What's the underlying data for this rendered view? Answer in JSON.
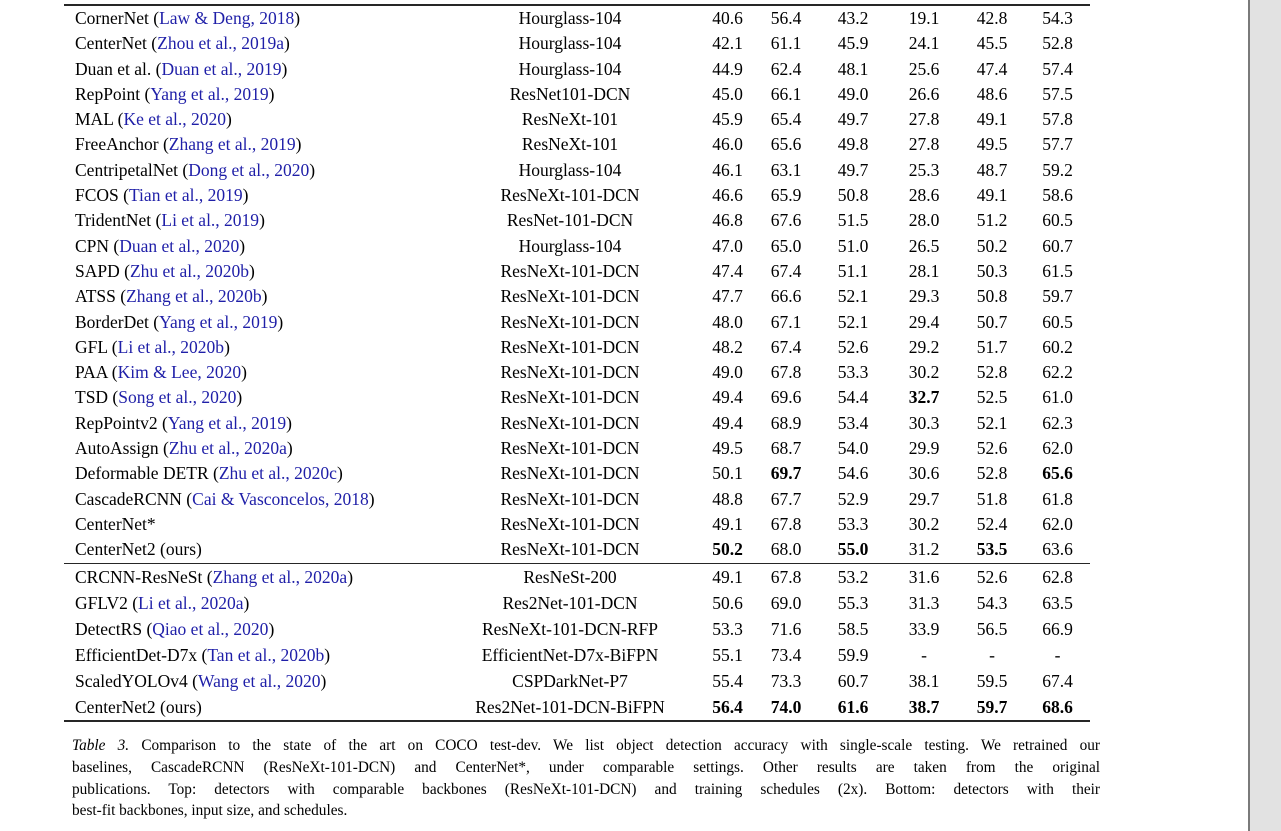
{
  "colors": {
    "citation_blue": "#1f1fa8",
    "rule_color": "#262626",
    "scrollbar_track": "#e2e2e2",
    "scrollbar_border": "#7a7a7a",
    "text": "#000000",
    "background": "#ffffff"
  },
  "table": {
    "sections": [
      {
        "name": "comparable-backbones",
        "rows": [
          {
            "method_pre": "CornerNet (",
            "cite": "Law & Deng, 2018",
            "method_post": ")",
            "backbone": "Hourglass-104",
            "values": [
              "40.6",
              "56.4",
              "43.2",
              "19.1",
              "42.8",
              "54.3"
            ],
            "bold": [
              false,
              false,
              false,
              false,
              false,
              false
            ]
          },
          {
            "method_pre": "CenterNet (",
            "cite": "Zhou et al., 2019a",
            "method_post": ")",
            "backbone": "Hourglass-104",
            "values": [
              "42.1",
              "61.1",
              "45.9",
              "24.1",
              "45.5",
              "52.8"
            ],
            "bold": [
              false,
              false,
              false,
              false,
              false,
              false
            ]
          },
          {
            "method_pre": "Duan et al. (",
            "cite": "Duan et al., 2019",
            "method_post": ")",
            "backbone": "Hourglass-104",
            "values": [
              "44.9",
              "62.4",
              "48.1",
              "25.6",
              "47.4",
              "57.4"
            ],
            "bold": [
              false,
              false,
              false,
              false,
              false,
              false
            ]
          },
          {
            "method_pre": "RepPoint (",
            "cite": "Yang et al., 2019",
            "method_post": ")",
            "backbone": "ResNet101-DCN",
            "values": [
              "45.0",
              "66.1",
              "49.0",
              "26.6",
              "48.6",
              "57.5"
            ],
            "bold": [
              false,
              false,
              false,
              false,
              false,
              false
            ]
          },
          {
            "method_pre": "MAL (",
            "cite": "Ke et al., 2020",
            "method_post": ")",
            "backbone": "ResNeXt-101",
            "values": [
              "45.9",
              "65.4",
              "49.7",
              "27.8",
              "49.1",
              "57.8"
            ],
            "bold": [
              false,
              false,
              false,
              false,
              false,
              false
            ]
          },
          {
            "method_pre": "FreeAnchor (",
            "cite": "Zhang et al., 2019",
            "method_post": ")",
            "backbone": "ResNeXt-101",
            "values": [
              "46.0",
              "65.6",
              "49.8",
              "27.8",
              "49.5",
              "57.7"
            ],
            "bold": [
              false,
              false,
              false,
              false,
              false,
              false
            ]
          },
          {
            "method_pre": "CentripetalNet (",
            "cite": "Dong et al., 2020",
            "method_post": ")",
            "backbone": "Hourglass-104",
            "values": [
              "46.1",
              "63.1",
              "49.7",
              "25.3",
              "48.7",
              "59.2"
            ],
            "bold": [
              false,
              false,
              false,
              false,
              false,
              false
            ]
          },
          {
            "method_pre": "FCOS (",
            "cite": "Tian et al., 2019",
            "method_post": ")",
            "backbone": "ResNeXt-101-DCN",
            "values": [
              "46.6",
              "65.9",
              "50.8",
              "28.6",
              "49.1",
              "58.6"
            ],
            "bold": [
              false,
              false,
              false,
              false,
              false,
              false
            ]
          },
          {
            "method_pre": "TridentNet (",
            "cite": "Li et al., 2019",
            "method_post": ")",
            "backbone": "ResNet-101-DCN",
            "values": [
              "46.8",
              "67.6",
              "51.5",
              "28.0",
              "51.2",
              "60.5"
            ],
            "bold": [
              false,
              false,
              false,
              false,
              false,
              false
            ]
          },
          {
            "method_pre": "CPN (",
            "cite": "Duan et al., 2020",
            "method_post": ")",
            "backbone": "Hourglass-104",
            "values": [
              "47.0",
              "65.0",
              "51.0",
              "26.5",
              "50.2",
              "60.7"
            ],
            "bold": [
              false,
              false,
              false,
              false,
              false,
              false
            ]
          },
          {
            "method_pre": "SAPD (",
            "cite": "Zhu et al., 2020b",
            "method_post": ")",
            "backbone": "ResNeXt-101-DCN",
            "values": [
              "47.4",
              "67.4",
              "51.1",
              "28.1",
              "50.3",
              "61.5"
            ],
            "bold": [
              false,
              false,
              false,
              false,
              false,
              false
            ]
          },
          {
            "method_pre": "ATSS (",
            "cite": "Zhang et al., 2020b",
            "method_post": ")",
            "backbone": "ResNeXt-101-DCN",
            "values": [
              "47.7",
              "66.6",
              "52.1",
              "29.3",
              "50.8",
              "59.7"
            ],
            "bold": [
              false,
              false,
              false,
              false,
              false,
              false
            ]
          },
          {
            "method_pre": "BorderDet (",
            "cite": "Yang et al., 2019",
            "method_post": ")",
            "backbone": "ResNeXt-101-DCN",
            "values": [
              "48.0",
              "67.1",
              "52.1",
              "29.4",
              "50.7",
              "60.5"
            ],
            "bold": [
              false,
              false,
              false,
              false,
              false,
              false
            ]
          },
          {
            "method_pre": "GFL (",
            "cite": "Li et al., 2020b",
            "method_post": ")",
            "backbone": "ResNeXt-101-DCN",
            "values": [
              "48.2",
              "67.4",
              "52.6",
              "29.2",
              "51.7",
              "60.2"
            ],
            "bold": [
              false,
              false,
              false,
              false,
              false,
              false
            ]
          },
          {
            "method_pre": "PAA (",
            "cite": "Kim & Lee, 2020",
            "method_post": ")",
            "backbone": "ResNeXt-101-DCN",
            "values": [
              "49.0",
              "67.8",
              "53.3",
              "30.2",
              "52.8",
              "62.2"
            ],
            "bold": [
              false,
              false,
              false,
              false,
              false,
              false
            ]
          },
          {
            "method_pre": "TSD (",
            "cite": "Song et al., 2020",
            "method_post": ")",
            "backbone": "ResNeXt-101-DCN",
            "values": [
              "49.4",
              "69.6",
              "54.4",
              "32.7",
              "52.5",
              "61.0"
            ],
            "bold": [
              false,
              false,
              false,
              true,
              false,
              false
            ]
          },
          {
            "method_pre": "RepPointv2 (",
            "cite": "Yang et al., 2019",
            "method_post": ")",
            "backbone": "ResNeXt-101-DCN",
            "values": [
              "49.4",
              "68.9",
              "53.4",
              "30.3",
              "52.1",
              "62.3"
            ],
            "bold": [
              false,
              false,
              false,
              false,
              false,
              false
            ]
          },
          {
            "method_pre": "AutoAssign (",
            "cite": "Zhu et al., 2020a",
            "method_post": ")",
            "backbone": "ResNeXt-101-DCN",
            "values": [
              "49.5",
              "68.7",
              "54.0",
              "29.9",
              "52.6",
              "62.0"
            ],
            "bold": [
              false,
              false,
              false,
              false,
              false,
              false
            ]
          },
          {
            "method_pre": "Deformable DETR (",
            "cite": "Zhu et al., 2020c",
            "method_post": ")",
            "backbone": "ResNeXt-101-DCN",
            "values": [
              "50.1",
              "69.7",
              "54.6",
              "30.6",
              "52.8",
              "65.6"
            ],
            "bold": [
              false,
              true,
              false,
              false,
              false,
              true
            ]
          },
          {
            "method_pre": "CascadeRCNN (",
            "cite": "Cai & Vasconcelos, 2018",
            "method_post": ")",
            "backbone": "ResNeXt-101-DCN",
            "values": [
              "48.8",
              "67.7",
              "52.9",
              "29.7",
              "51.8",
              "61.8"
            ],
            "bold": [
              false,
              false,
              false,
              false,
              false,
              false
            ]
          },
          {
            "method_pre": "CenterNet*",
            "cite": "",
            "method_post": "",
            "backbone": "ResNeXt-101-DCN",
            "values": [
              "49.1",
              "67.8",
              "53.3",
              "30.2",
              "52.4",
              "62.0"
            ],
            "bold": [
              false,
              false,
              false,
              false,
              false,
              false
            ]
          },
          {
            "method_pre": "CenterNet2 (ours)",
            "cite": "",
            "method_post": "",
            "backbone": "ResNeXt-101-DCN",
            "values": [
              "50.2",
              "68.0",
              "55.0",
              "31.2",
              "53.5",
              "63.6"
            ],
            "bold": [
              true,
              false,
              true,
              false,
              true,
              false
            ]
          }
        ]
      },
      {
        "name": "best-fit-backbones",
        "rows": [
          {
            "method_pre": "CRCNN-ResNeSt (",
            "cite": "Zhang et al., 2020a",
            "method_post": ")",
            "backbone": "ResNeSt-200",
            "values": [
              "49.1",
              "67.8",
              "53.2",
              "31.6",
              "52.6",
              "62.8"
            ],
            "bold": [
              false,
              false,
              false,
              false,
              false,
              false
            ]
          },
          {
            "method_pre": "GFLV2 (",
            "cite": "Li et al., 2020a",
            "method_post": ")",
            "backbone": "Res2Net-101-DCN",
            "values": [
              "50.6",
              "69.0",
              "55.3",
              "31.3",
              "54.3",
              "63.5"
            ],
            "bold": [
              false,
              false,
              false,
              false,
              false,
              false
            ]
          },
          {
            "method_pre": "DetectRS (",
            "cite": "Qiao et al., 2020",
            "method_post": ")",
            "backbone": "ResNeXt-101-DCN-RFP",
            "values": [
              "53.3",
              "71.6",
              "58.5",
              "33.9",
              "56.5",
              "66.9"
            ],
            "bold": [
              false,
              false,
              false,
              false,
              false,
              false
            ]
          },
          {
            "method_pre": "EfficientDet-D7x (",
            "cite": "Tan et al., 2020b",
            "method_post": ")",
            "backbone": "EfficientNet-D7x-BiFPN",
            "values": [
              "55.1",
              "73.4",
              "59.9",
              "-",
              "-",
              "-"
            ],
            "bold": [
              false,
              false,
              false,
              false,
              false,
              false
            ]
          },
          {
            "method_pre": "ScaledYOLOv4 (",
            "cite": "Wang et al., 2020",
            "method_post": ")",
            "backbone": "CSPDarkNet-P7",
            "values": [
              "55.4",
              "73.3",
              "60.7",
              "38.1",
              "59.5",
              "67.4"
            ],
            "bold": [
              false,
              false,
              false,
              false,
              false,
              false
            ]
          },
          {
            "method_pre": "CenterNet2 (ours)",
            "cite": "",
            "method_post": "",
            "backbone": "Res2Net-101-DCN-BiFPN",
            "values": [
              "56.4",
              "74.0",
              "61.6",
              "38.7",
              "59.7",
              "68.6"
            ],
            "bold": [
              true,
              true,
              true,
              true,
              true,
              true
            ]
          }
        ]
      }
    ]
  },
  "caption": {
    "label": "Table 3.",
    "lines": [
      "Comparison to the state of the art on COCO test-dev. We list object detection accuracy with single-scale testing. We retrained our",
      "baselines, CascadeRCNN (ResNeXt-101-DCN) and CenterNet*, under comparable settings. Other results are taken from the original",
      "publications. Top: detectors with comparable backbones (ResNeXt-101-DCN) and training schedules (2x). Bottom: detectors with their",
      "best-fit backbones, input size, and schedules."
    ]
  }
}
